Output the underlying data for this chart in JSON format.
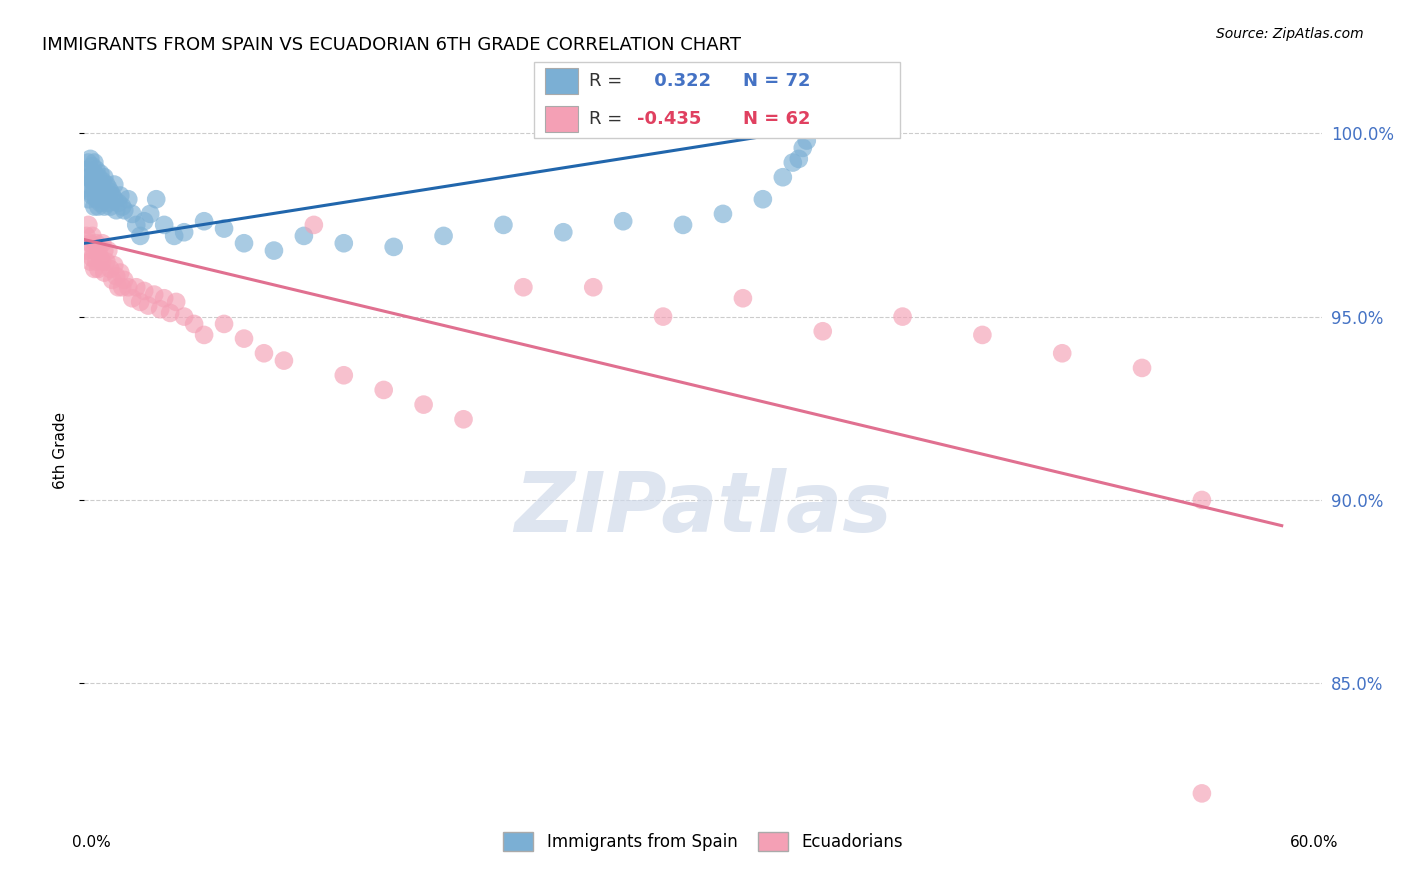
{
  "title": "IMMIGRANTS FROM SPAIN VS ECUADORIAN 6TH GRADE CORRELATION CHART",
  "source": "Source: ZipAtlas.com",
  "ylabel": "6th Grade",
  "xlim": [
    0.0,
    0.62
  ],
  "ylim": [
    0.815,
    1.012
  ],
  "blue_R": 0.322,
  "blue_N": 72,
  "pink_R": -0.435,
  "pink_N": 62,
  "blue_color": "#7bafd4",
  "pink_color": "#f4a0b5",
  "blue_line_color": "#2166ac",
  "pink_line_color": "#e07090",
  "legend_label_blue": "Immigrants from Spain",
  "legend_label_pink": "Ecuadorians",
  "yticks": [
    0.85,
    0.9,
    0.95,
    1.0
  ],
  "ytick_labels": [
    "85.0%",
    "90.0%",
    "95.0%",
    "100.0%"
  ],
  "blue_x": [
    0.001,
    0.001,
    0.002,
    0.002,
    0.002,
    0.003,
    0.003,
    0.003,
    0.004,
    0.004,
    0.004,
    0.005,
    0.005,
    0.005,
    0.005,
    0.006,
    0.006,
    0.006,
    0.007,
    0.007,
    0.007,
    0.008,
    0.008,
    0.008,
    0.009,
    0.009,
    0.01,
    0.01,
    0.01,
    0.011,
    0.011,
    0.012,
    0.012,
    0.013,
    0.013,
    0.014,
    0.015,
    0.015,
    0.016,
    0.017,
    0.018,
    0.019,
    0.02,
    0.022,
    0.024,
    0.026,
    0.028,
    0.03,
    0.033,
    0.036,
    0.04,
    0.045,
    0.05,
    0.06,
    0.07,
    0.08,
    0.095,
    0.11,
    0.13,
    0.155,
    0.18,
    0.21,
    0.24,
    0.27,
    0.3,
    0.32,
    0.34,
    0.35,
    0.355,
    0.358,
    0.36,
    0.362
  ],
  "blue_y": [
    0.99,
    0.985,
    0.992,
    0.988,
    0.982,
    0.993,
    0.988,
    0.984,
    0.991,
    0.987,
    0.983,
    0.992,
    0.989,
    0.985,
    0.98,
    0.99,
    0.986,
    0.982,
    0.988,
    0.984,
    0.98,
    0.989,
    0.985,
    0.981,
    0.987,
    0.983,
    0.988,
    0.984,
    0.98,
    0.986,
    0.982,
    0.985,
    0.981,
    0.984,
    0.98,
    0.983,
    0.986,
    0.982,
    0.979,
    0.981,
    0.983,
    0.98,
    0.979,
    0.982,
    0.978,
    0.975,
    0.972,
    0.976,
    0.978,
    0.982,
    0.975,
    0.972,
    0.973,
    0.976,
    0.974,
    0.97,
    0.968,
    0.972,
    0.97,
    0.969,
    0.972,
    0.975,
    0.973,
    0.976,
    0.975,
    0.978,
    0.982,
    0.988,
    0.992,
    0.993,
    0.996,
    0.998
  ],
  "pink_x": [
    0.001,
    0.001,
    0.002,
    0.003,
    0.003,
    0.004,
    0.004,
    0.005,
    0.005,
    0.006,
    0.006,
    0.007,
    0.007,
    0.008,
    0.009,
    0.009,
    0.01,
    0.01,
    0.011,
    0.012,
    0.013,
    0.014,
    0.015,
    0.016,
    0.017,
    0.018,
    0.019,
    0.02,
    0.022,
    0.024,
    0.026,
    0.028,
    0.03,
    0.032,
    0.035,
    0.038,
    0.04,
    0.043,
    0.046,
    0.05,
    0.055,
    0.06,
    0.07,
    0.08,
    0.09,
    0.1,
    0.115,
    0.13,
    0.15,
    0.17,
    0.19,
    0.22,
    0.255,
    0.29,
    0.33,
    0.37,
    0.41,
    0.45,
    0.49,
    0.53,
    0.56,
    0.56
  ],
  "pink_y": [
    0.972,
    0.968,
    0.975,
    0.97,
    0.965,
    0.972,
    0.966,
    0.968,
    0.963,
    0.97,
    0.965,
    0.968,
    0.963,
    0.966,
    0.97,
    0.965,
    0.968,
    0.962,
    0.965,
    0.968,
    0.963,
    0.96,
    0.964,
    0.961,
    0.958,
    0.962,
    0.958,
    0.96,
    0.958,
    0.955,
    0.958,
    0.954,
    0.957,
    0.953,
    0.956,
    0.952,
    0.955,
    0.951,
    0.954,
    0.95,
    0.948,
    0.945,
    0.948,
    0.944,
    0.94,
    0.938,
    0.975,
    0.934,
    0.93,
    0.926,
    0.922,
    0.958,
    0.958,
    0.95,
    0.955,
    0.946,
    0.95,
    0.945,
    0.94,
    0.936,
    0.9,
    0.82
  ]
}
